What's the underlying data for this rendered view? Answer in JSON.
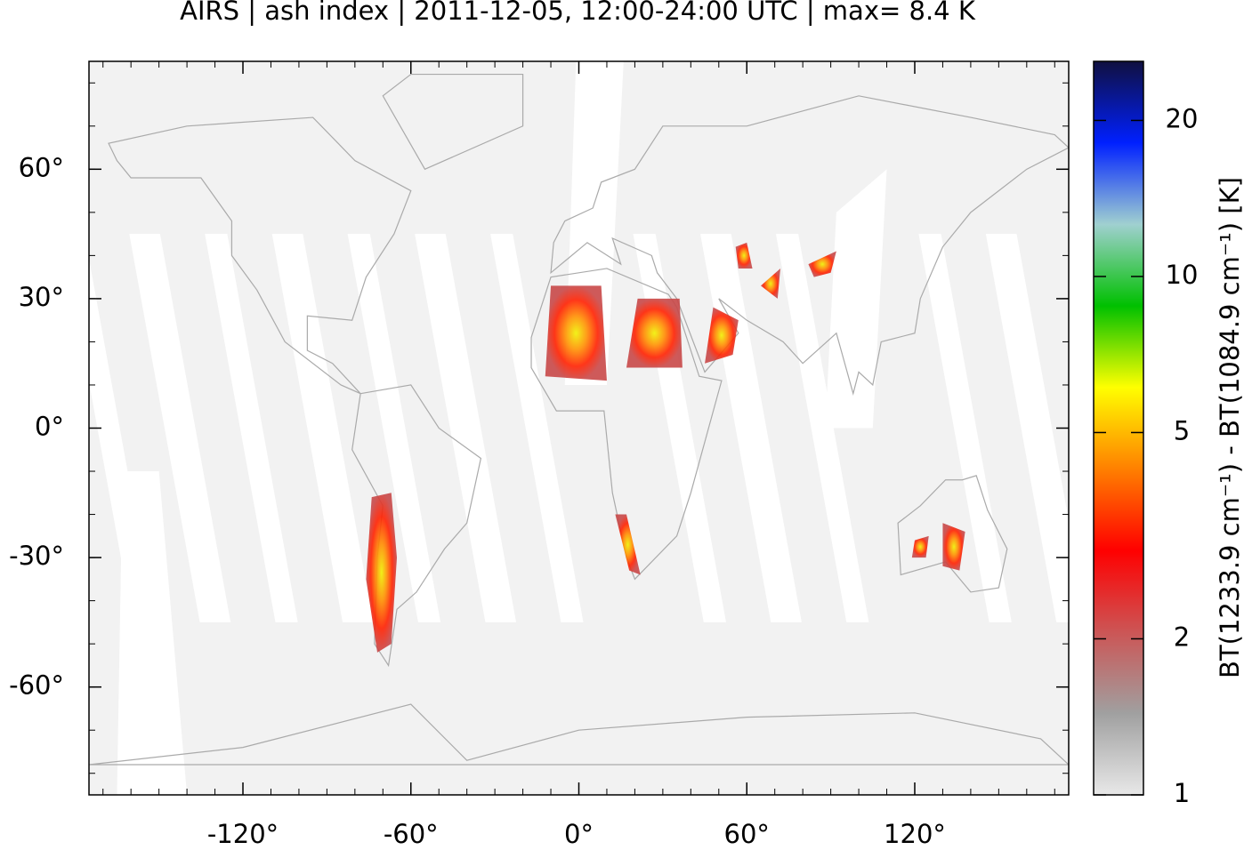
{
  "chart_data": {
    "type": "map",
    "title": "AIRS | ash index | 2011-12-05, 12:00-24:00 UTC | max= 8.4 K",
    "xlim": [
      -175,
      175
    ],
    "ylim": [
      -85,
      85
    ],
    "xticks": [
      {
        "value": -120,
        "label": "-120°"
      },
      {
        "value": -60,
        "label": "-60°"
      },
      {
        "value": 0,
        "label": "0°"
      },
      {
        "value": 60,
        "label": "60°"
      },
      {
        "value": 120,
        "label": "120°"
      }
    ],
    "yticks": [
      {
        "value": 60,
        "label": "60°"
      },
      {
        "value": 30,
        "label": "30°"
      },
      {
        "value": 0,
        "label": "0°"
      },
      {
        "value": -30,
        "label": "-30°"
      },
      {
        "value": -60,
        "label": "-60°"
      }
    ],
    "colorbar": {
      "label": "BT(1233.9 cm⁻¹) - BT(1084.9 cm⁻¹) [K]",
      "log_scale": true,
      "clim": [
        1,
        26
      ],
      "ticks": [
        1,
        2,
        5,
        10,
        20
      ],
      "colormap": [
        "#e8e8e8",
        "#a0a0a0",
        "#cc5555",
        "#ff0000",
        "#ff8000",
        "#ffff00",
        "#00c000",
        "#a0d0d0",
        "#0020ff",
        "#101040"
      ]
    }
  }
}
